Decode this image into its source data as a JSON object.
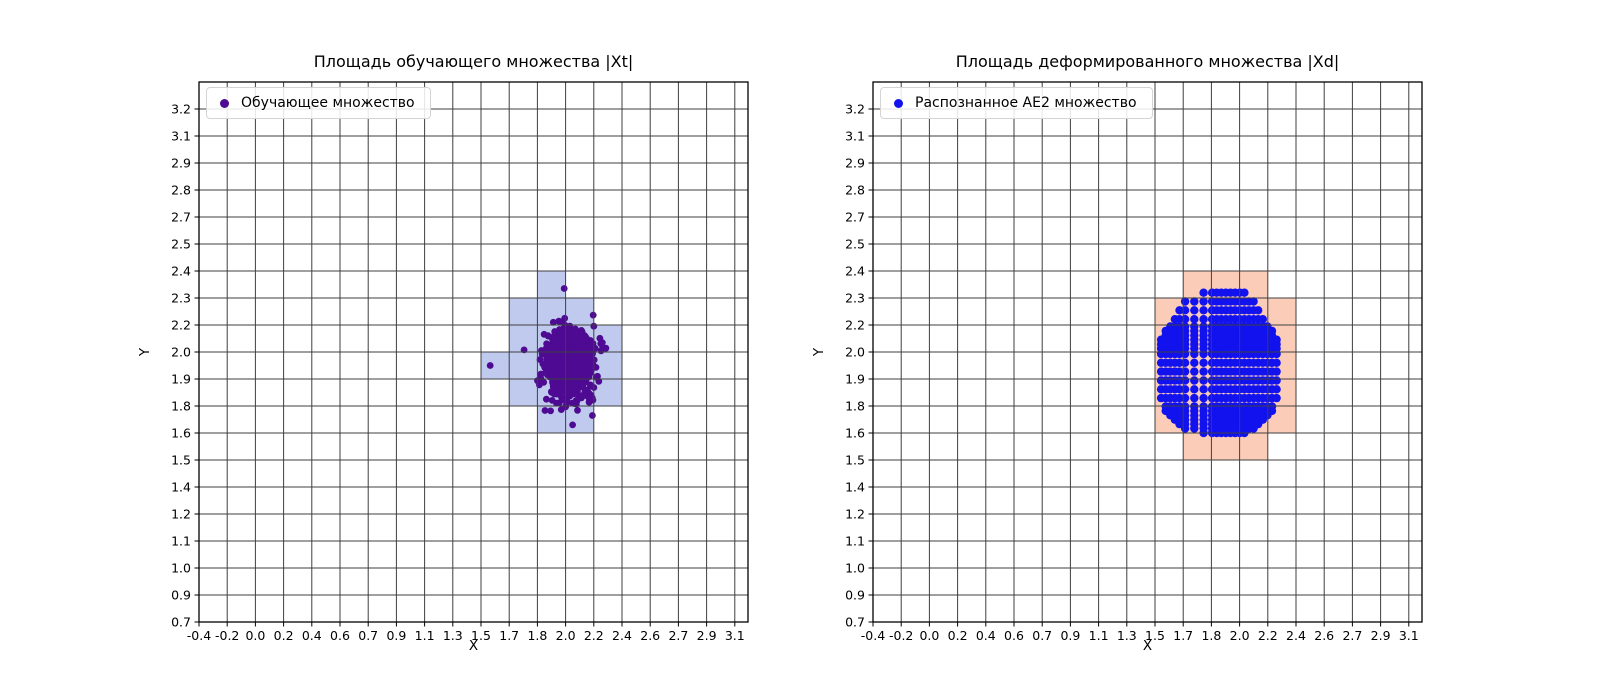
{
  "style": {
    "background": "#ffffff",
    "grid_color": "#3f3f3f",
    "spine_color": "#000000",
    "tick_label_color": "#000000",
    "legend_border_color": "#d4d4d4"
  },
  "chart_data": [
    {
      "type": "scatter",
      "title": "Площадь обучающего множества |Xt|",
      "xlabel": "X",
      "ylabel": "Y",
      "legend_label": "Обучающее множество",
      "legend_position": "upper left",
      "grid": true,
      "x_tick_labels": [
        "-0.4",
        "-0.2",
        "0.0",
        "0.2",
        "0.4",
        "0.6",
        "0.7",
        "0.9",
        "1.1",
        "1.3",
        "1.5",
        "1.7",
        "1.8",
        "2.0",
        "2.2",
        "2.4",
        "2.6",
        "2.7",
        "2.9",
        "3.1"
      ],
      "y_tick_labels": [
        "0.7",
        "0.9",
        "1.0",
        "1.1",
        "1.2",
        "1.4",
        "1.5",
        "1.6",
        "1.8",
        "1.9",
        "2.0",
        "2.2",
        "2.3",
        "2.4",
        "2.5",
        "2.7",
        "2.8",
        "2.9",
        "3.1",
        "3.2"
      ],
      "shaded_cells": {
        "color": "#bfcaee",
        "rects": [
          [
            1.8,
            2.0,
            2.3,
            2.4
          ],
          [
            1.7,
            2.2,
            2.2,
            2.3
          ],
          [
            1.7,
            2.4,
            2.0,
            2.2
          ],
          [
            1.5,
            2.4,
            1.9,
            2.0
          ],
          [
            1.7,
            2.4,
            1.8,
            1.9
          ],
          [
            1.8,
            2.2,
            1.6,
            1.8
          ]
        ]
      },
      "points": {
        "kind": "gaussian_cluster",
        "color": "#4e0a92",
        "n": 1000,
        "center": [
          2.02,
          1.99
        ],
        "sigma": [
          0.077,
          0.08
        ],
        "seed": 11,
        "marker_px": 3.4,
        "outliers": [
          [
            1.565,
            1.95
          ],
          [
            1.99,
            2.335
          ],
          [
            2.05,
            1.66
          ],
          [
            2.19,
            1.73
          ]
        ]
      }
    },
    {
      "type": "scatter",
      "title": "Площадь деформированного множества |Xd|",
      "xlabel": "X",
      "ylabel": "Y",
      "legend_label": "Распознанное AE2 множество",
      "legend_position": "upper left",
      "grid": true,
      "x_tick_labels": [
        "-0.4",
        "-0.2",
        "0.0",
        "0.2",
        "0.4",
        "0.6",
        "0.7",
        "0.9",
        "1.1",
        "1.3",
        "1.5",
        "1.7",
        "1.8",
        "2.0",
        "2.2",
        "2.4",
        "2.6",
        "2.7",
        "2.9",
        "3.1"
      ],
      "y_tick_labels": [
        "0.7",
        "0.9",
        "1.0",
        "1.1",
        "1.2",
        "1.4",
        "1.5",
        "1.6",
        "1.8",
        "1.9",
        "2.0",
        "2.2",
        "2.3",
        "2.4",
        "2.5",
        "2.7",
        "2.8",
        "2.9",
        "3.1",
        "3.2"
      ],
      "shaded_cells": {
        "color": "#fbccb8",
        "rects": [
          [
            1.7,
            2.2,
            2.3,
            2.4
          ],
          [
            1.5,
            2.4,
            2.2,
            2.3
          ],
          [
            1.5,
            2.4,
            2.0,
            2.2
          ],
          [
            1.5,
            2.4,
            1.9,
            2.0
          ],
          [
            1.5,
            2.4,
            1.8,
            1.9
          ],
          [
            1.5,
            2.4,
            1.6,
            1.8
          ],
          [
            1.7,
            2.2,
            1.5,
            1.6
          ]
        ]
      },
      "points": {
        "kind": "grid_in_circle",
        "color": "#1212ee",
        "center": [
          1.903,
          1.96
        ],
        "step": 0.0327,
        "radius": 0.385,
        "marker_px": 4.2
      }
    }
  ]
}
